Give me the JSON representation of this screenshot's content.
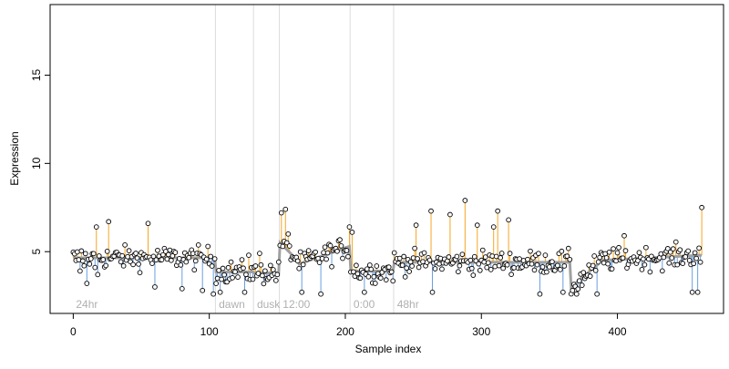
{
  "chart_data": {
    "type": "scatter",
    "xlabel": "Sample index",
    "ylabel": "Expression",
    "xlim": [
      -17,
      478
    ],
    "ylim": [
      1.5,
      19.0
    ],
    "x_ticks": [
      0,
      100,
      200,
      300,
      400
    ],
    "y_ticks": [
      5,
      10,
      15
    ],
    "grid": false,
    "baseline_color": "#a0a0a0",
    "above_color": "#f5a623",
    "below_color": "#6a9ee0",
    "point_fill": "#ffffff",
    "point_stroke": "#000000",
    "segments": [
      {
        "label": "24hr",
        "start": 0,
        "end": 104,
        "mean": 4.65
      },
      {
        "label": "dawn",
        "start": 105,
        "end": 132,
        "mean": 3.85
      },
      {
        "label": "dusk",
        "start": 133,
        "end": 151,
        "mean": 3.8
      },
      {
        "label": "12:00",
        "start": 152,
        "end": 203,
        "mean": 4.6
      },
      {
        "label": "0:00",
        "start": 204,
        "end": 235,
        "mean": 3.9
      },
      {
        "label": "48hr",
        "start": 236,
        "end": 462,
        "mean": 4.4
      }
    ],
    "segment_trend": [
      {
        "start": 152,
        "end": 165,
        "from": 5.5,
        "to": 4.5
      },
      {
        "start": 166,
        "end": 203,
        "from": 4.3,
        "to": 5.3
      },
      {
        "start": 366,
        "end": 386,
        "from": 3.0,
        "to": 4.3
      },
      {
        "start": 386,
        "end": 462,
        "from": 4.5,
        "to": 4.8
      }
    ],
    "key_points": [
      {
        "x": 2,
        "y": 4.5
      },
      {
        "x": 5,
        "y": 3.9
      },
      {
        "x": 8,
        "y": 4.2
      },
      {
        "x": 10,
        "y": 3.2
      },
      {
        "x": 13,
        "y": 4.6
      },
      {
        "x": 16,
        "y": 4.1
      },
      {
        "x": 18,
        "y": 3.7
      },
      {
        "x": 17,
        "y": 6.4
      },
      {
        "x": 26,
        "y": 6.7
      },
      {
        "x": 55,
        "y": 6.6
      },
      {
        "x": 60,
        "y": 3.0
      },
      {
        "x": 80,
        "y": 2.9
      },
      {
        "x": 95,
        "y": 2.8
      },
      {
        "x": 103,
        "y": 2.6
      },
      {
        "x": 108,
        "y": 2.7
      },
      {
        "x": 126,
        "y": 2.7
      },
      {
        "x": 129,
        "y": 4.8
      },
      {
        "x": 137,
        "y": 4.9
      },
      {
        "x": 153,
        "y": 7.2
      },
      {
        "x": 156,
        "y": 7.4
      },
      {
        "x": 158,
        "y": 6.0
      },
      {
        "x": 168,
        "y": 2.7
      },
      {
        "x": 182,
        "y": 2.6
      },
      {
        "x": 203,
        "y": 6.4
      },
      {
        "x": 205,
        "y": 6.1
      },
      {
        "x": 214,
        "y": 2.7
      },
      {
        "x": 252,
        "y": 6.5
      },
      {
        "x": 264,
        "y": 2.7
      },
      {
        "x": 263,
        "y": 7.3
      },
      {
        "x": 277,
        "y": 7.1
      },
      {
        "x": 288,
        "y": 7.9
      },
      {
        "x": 297,
        "y": 6.5
      },
      {
        "x": 309,
        "y": 6.4
      },
      {
        "x": 312,
        "y": 7.3
      },
      {
        "x": 320,
        "y": 6.8
      },
      {
        "x": 343,
        "y": 2.6
      },
      {
        "x": 360,
        "y": 2.7
      },
      {
        "x": 370,
        "y": 2.6
      },
      {
        "x": 385,
        "y": 2.6
      },
      {
        "x": 405,
        "y": 5.9
      },
      {
        "x": 455,
        "y": 2.7
      },
      {
        "x": 459,
        "y": 2.7
      },
      {
        "x": 460,
        "y": 5.2
      },
      {
        "x": 462,
        "y": 7.5
      }
    ],
    "n_points": 463
  }
}
